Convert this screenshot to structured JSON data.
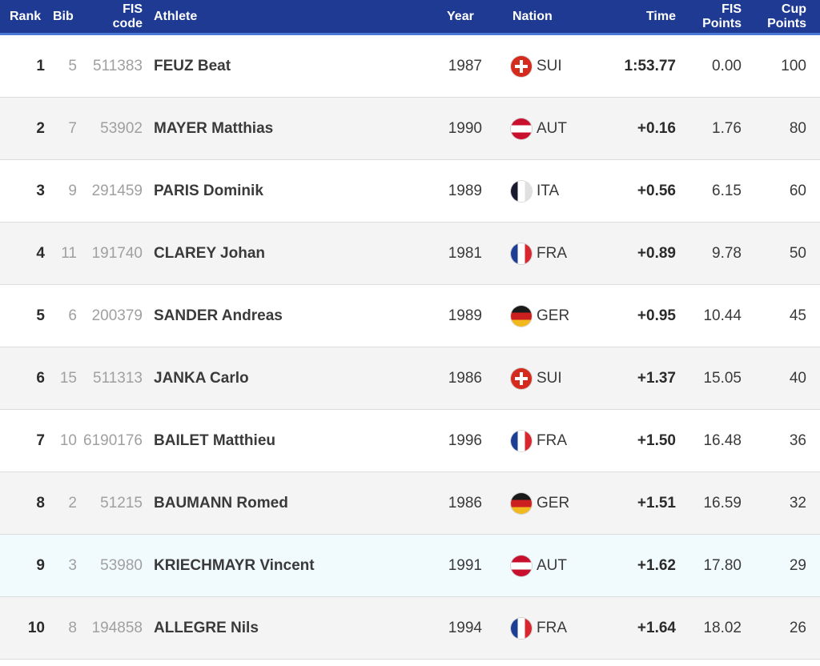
{
  "header": {
    "rank": "Rank",
    "bib": "Bib",
    "fis_code_line1": "FIS",
    "fis_code_line2": "code",
    "athlete": "Athlete",
    "year": "Year",
    "nation": "Nation",
    "time": "Time",
    "fis_points_line1": "FIS",
    "fis_points_line2": "Points",
    "cup_points_line1": "Cup",
    "cup_points_line2": "Points"
  },
  "colors": {
    "header_bg": "#1f3a93",
    "header_underline": "#4a78d4",
    "row_alt": "#f4f4f4",
    "row_highlight": "#f1fbfd"
  },
  "rows": [
    {
      "rank": "1",
      "bib": "5",
      "fis_code": "511383",
      "athlete": "FEUZ Beat",
      "year": "1987",
      "flag_icon": "sui",
      "nation": "SUI",
      "time": "1:53.77",
      "fis_points": "0.00",
      "cup_points": "100"
    },
    {
      "rank": "2",
      "bib": "7",
      "fis_code": "53902",
      "athlete": "MAYER Matthias",
      "year": "1990",
      "flag_icon": "aut",
      "nation": "AUT",
      "time": "+0.16",
      "fis_points": "1.76",
      "cup_points": "80"
    },
    {
      "rank": "3",
      "bib": "9",
      "fis_code": "291459",
      "athlete": "PARIS Dominik",
      "year": "1989",
      "flag_icon": "ita",
      "nation": "ITA",
      "time": "+0.56",
      "fis_points": "6.15",
      "cup_points": "60"
    },
    {
      "rank": "4",
      "bib": "11",
      "fis_code": "191740",
      "athlete": "CLAREY Johan",
      "year": "1981",
      "flag_icon": "fra",
      "nation": "FRA",
      "time": "+0.89",
      "fis_points": "9.78",
      "cup_points": "50"
    },
    {
      "rank": "5",
      "bib": "6",
      "fis_code": "200379",
      "athlete": "SANDER Andreas",
      "year": "1989",
      "flag_icon": "ger",
      "nation": "GER",
      "time": "+0.95",
      "fis_points": "10.44",
      "cup_points": "45"
    },
    {
      "rank": "6",
      "bib": "15",
      "fis_code": "511313",
      "athlete": "JANKA Carlo",
      "year": "1986",
      "flag_icon": "sui",
      "nation": "SUI",
      "time": "+1.37",
      "fis_points": "15.05",
      "cup_points": "40"
    },
    {
      "rank": "7",
      "bib": "10",
      "fis_code": "6190176",
      "athlete": "BAILET Matthieu",
      "year": "1996",
      "flag_icon": "fra",
      "nation": "FRA",
      "time": "+1.50",
      "fis_points": "16.48",
      "cup_points": "36"
    },
    {
      "rank": "8",
      "bib": "2",
      "fis_code": "51215",
      "athlete": "BAUMANN Romed",
      "year": "1986",
      "flag_icon": "ger",
      "nation": "GER",
      "time": "+1.51",
      "fis_points": "16.59",
      "cup_points": "32"
    },
    {
      "rank": "9",
      "bib": "3",
      "fis_code": "53980",
      "athlete": "KRIECHMAYR Vincent",
      "year": "1991",
      "flag_icon": "aut",
      "nation": "AUT",
      "time": "+1.62",
      "fis_points": "17.80",
      "cup_points": "29"
    },
    {
      "rank": "10",
      "bib": "8",
      "fis_code": "194858",
      "athlete": "ALLEGRE Nils",
      "year": "1994",
      "flag_icon": "fra",
      "nation": "FRA",
      "time": "+1.64",
      "fis_points": "18.02",
      "cup_points": "26"
    }
  ]
}
